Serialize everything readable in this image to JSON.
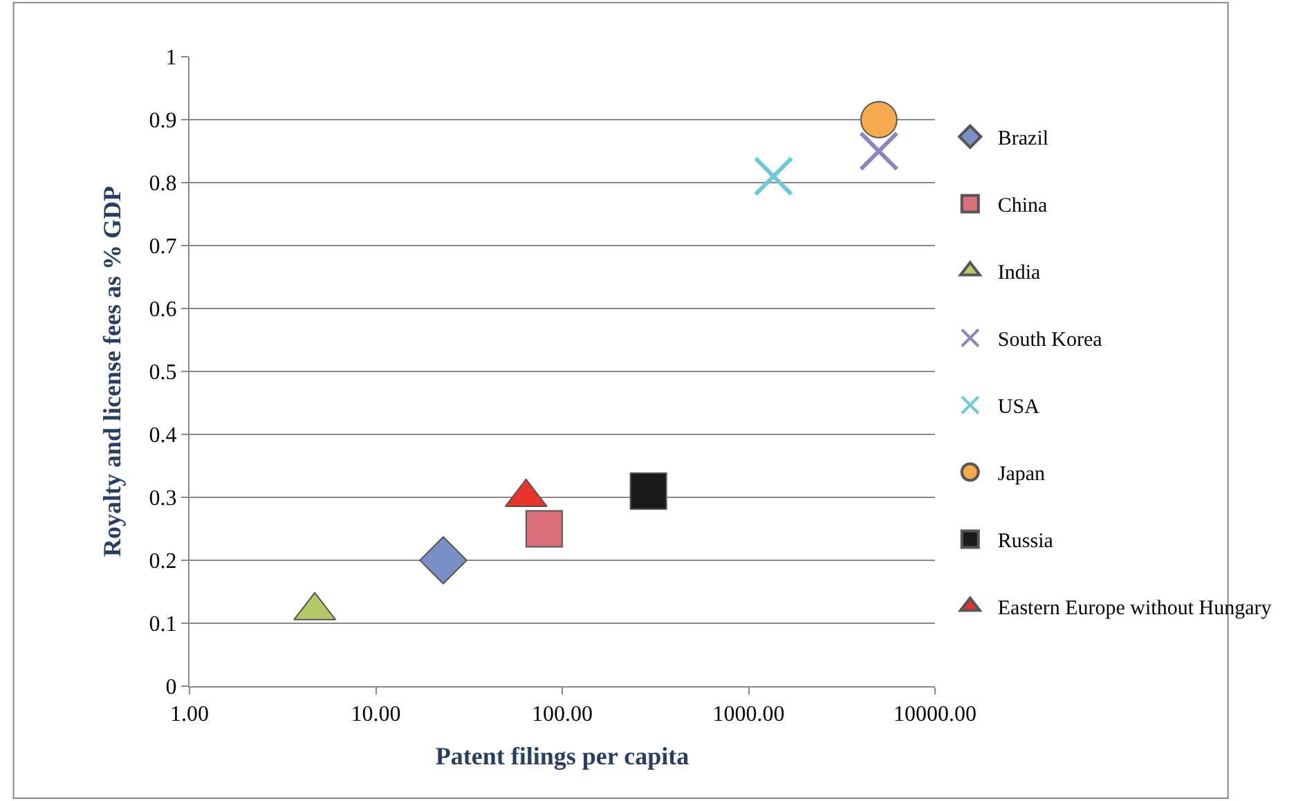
{
  "chart_data": {
    "type": "scatter",
    "xlabel": "Patent filings per capita",
    "ylabel": "Royalty and license fees as % GDP",
    "log": "x",
    "grid": "y",
    "legend": "right",
    "xlim": [
      1,
      10000
    ],
    "xticks": [
      {
        "value": 1,
        "label": "1.00"
      },
      {
        "value": 10,
        "label": "10.00"
      },
      {
        "value": 100,
        "label": "100.00"
      },
      {
        "value": 1000,
        "label": "1000.00"
      },
      {
        "value": 10000,
        "label": "10000.00"
      }
    ],
    "ylim": [
      0,
      1
    ],
    "yticks": [
      0,
      0.1,
      0.2,
      0.3,
      0.4,
      0.5,
      0.6,
      0.7,
      0.8,
      0.9,
      1
    ],
    "series": [
      {
        "name": "Brazil",
        "color": "#7b8fc7",
        "marker": "diamond",
        "x": [
          23
        ],
        "values": [
          0.2
        ]
      },
      {
        "name": "China",
        "color": "#d9707a",
        "marker": "square",
        "x": [
          80
        ],
        "values": [
          0.25
        ]
      },
      {
        "name": "India",
        "color": "#b5c96b",
        "marker": "triangle",
        "x": [
          4.7
        ],
        "values": [
          0.12
        ]
      },
      {
        "name": "South Korea",
        "color": "#8d85c0",
        "marker": "cross",
        "x": [
          5000
        ],
        "values": [
          0.85
        ]
      },
      {
        "name": "USA",
        "color": "#6ccbd3",
        "marker": "cross",
        "x": [
          1360
        ],
        "values": [
          0.81
        ]
      },
      {
        "name": "Japan",
        "color": "#f6a94e",
        "marker": "circle",
        "x": [
          5000
        ],
        "values": [
          0.9
        ]
      },
      {
        "name": "Russia",
        "color": "#1a1a1a",
        "marker": "square",
        "x": [
          290
        ],
        "values": [
          0.31
        ]
      },
      {
        "name": "Eastern Europe without Hungary",
        "color": "#e8342a",
        "marker": "triangle",
        "x": [
          64
        ],
        "values": [
          0.3
        ]
      }
    ]
  }
}
